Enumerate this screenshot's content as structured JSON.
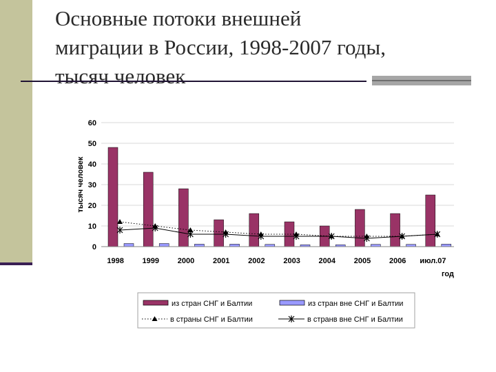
{
  "title": {
    "line1": "Основные потоки внешней",
    "line2": "миграции в России, 1998-2007 годы,",
    "line3": "тысяч человек"
  },
  "colors": {
    "bar1": "#993366",
    "bar2": "#9999ff",
    "plot_bg": "#ffffff",
    "grid": "#d9d9d9",
    "left_band": "#c4c49c"
  },
  "chart_data": {
    "type": "bar",
    "categories": [
      "1998",
      "1999",
      "2000",
      "2001",
      "2002",
      "2003",
      "2004",
      "2005",
      "2006",
      "июл.07"
    ],
    "xlabel": "год",
    "ylabel": "тысяч человек",
    "ylim": [
      0,
      60
    ],
    "yticks": [
      0,
      10,
      20,
      30,
      40,
      50,
      60
    ],
    "grid": true,
    "legend_position": "bottom",
    "series": [
      {
        "name": "из стран СНГ и Балтии",
        "kind": "bar",
        "color": "#993366",
        "values": [
          48,
          36,
          28,
          13,
          16,
          12,
          10,
          18,
          16,
          25
        ]
      },
      {
        "name": "из стран вне СНГ и Балтии",
        "kind": "bar",
        "color": "#9999ff",
        "values": [
          1.5,
          1.5,
          1.2,
          1.2,
          1.1,
          0.9,
          0.9,
          1.1,
          1.1,
          1.2
        ]
      },
      {
        "name": "в страны СНГ и Балтии",
        "kind": "line",
        "style": "dotted",
        "marker": "triangle",
        "values": [
          12,
          10,
          8,
          7,
          6,
          6,
          5,
          5,
          5,
          6
        ]
      },
      {
        "name": "в странв вне СНГ и Балтии",
        "kind": "line",
        "style": "solid",
        "marker": "star",
        "values": [
          8,
          9,
          6,
          6,
          5,
          5,
          5,
          4,
          5,
          6
        ]
      }
    ]
  }
}
